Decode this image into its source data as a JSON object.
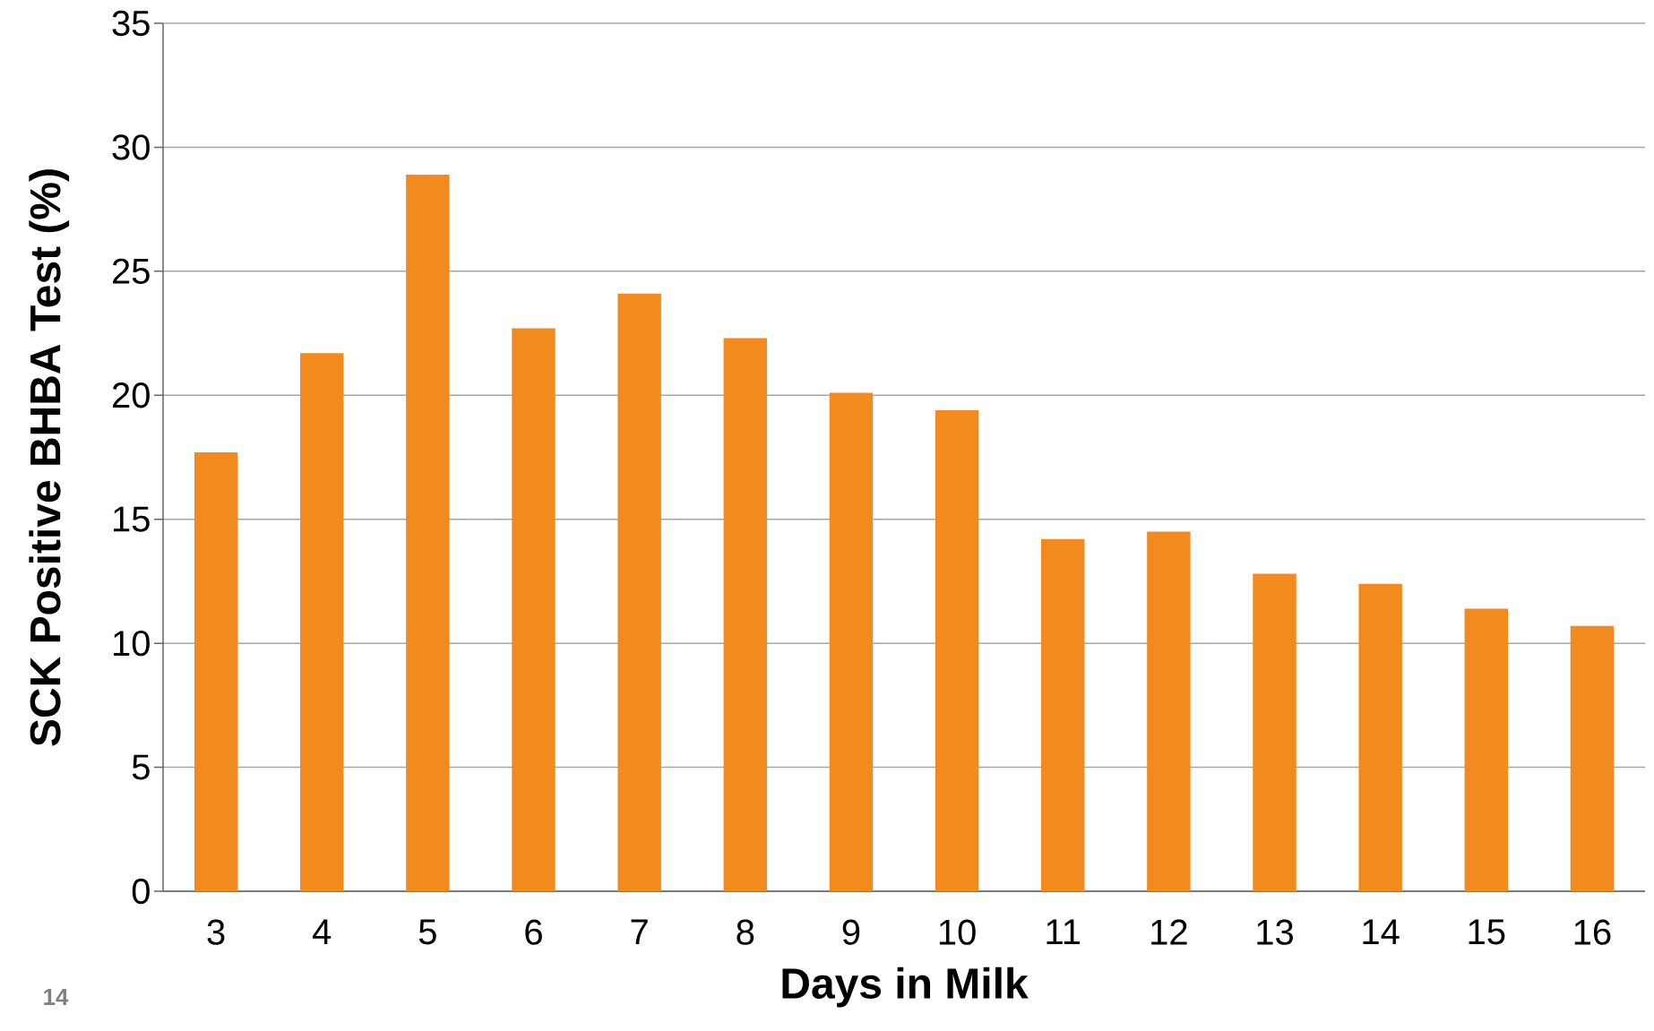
{
  "chart_data": {
    "type": "bar",
    "xlabel": "Days in Milk",
    "ylabel": "SCK Positive BHBA Test (%)",
    "categories": [
      "3",
      "4",
      "5",
      "6",
      "7",
      "8",
      "9",
      "10",
      "11",
      "12",
      "13",
      "14",
      "15",
      "16"
    ],
    "values": [
      17.7,
      21.7,
      28.9,
      22.7,
      24.1,
      22.3,
      20.1,
      19.4,
      14.2,
      14.5,
      12.8,
      12.4,
      11.4,
      10.7
    ],
    "color": "#f28a1e",
    "ylim": [
      0,
      35
    ],
    "yticks": [
      0,
      5,
      10,
      15,
      20,
      25,
      30,
      35
    ],
    "grid": "y",
    "annotations": [
      "14"
    ]
  }
}
